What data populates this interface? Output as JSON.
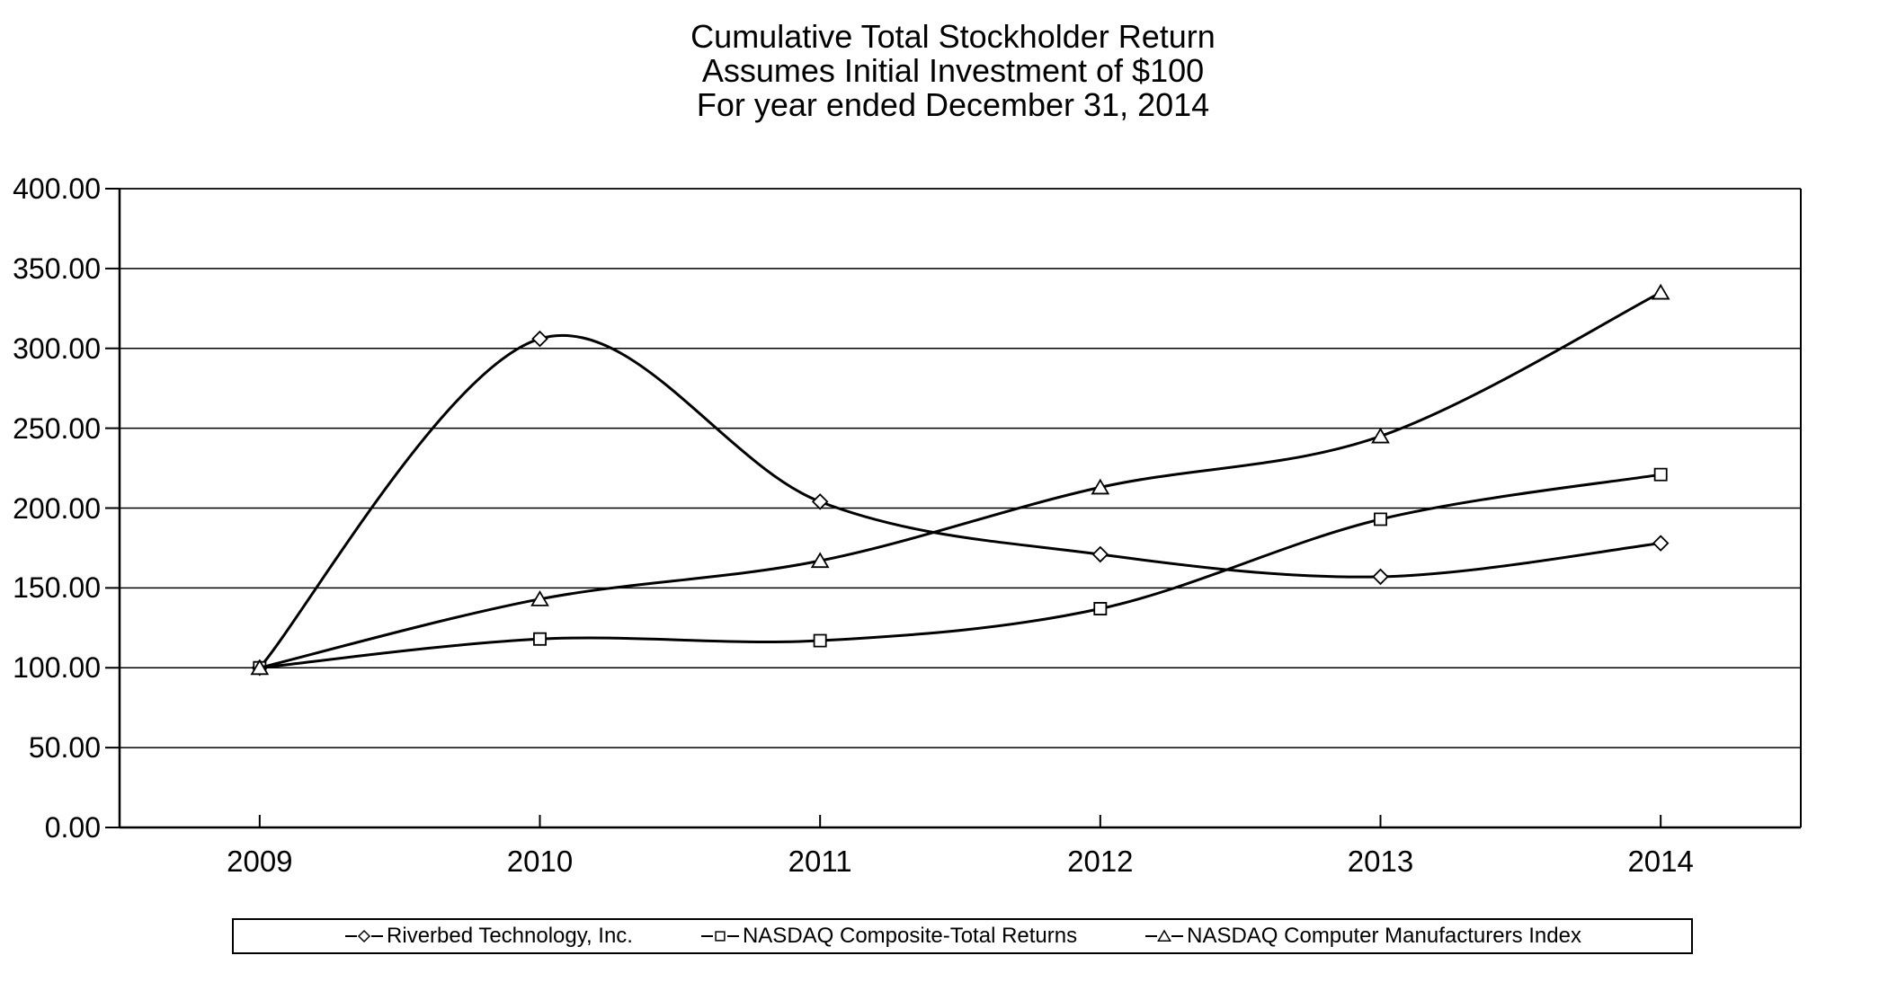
{
  "title": {
    "line1": "Cumulative Total Stockholder Return",
    "line2": "Assumes Initial Investment of $100",
    "line3": "For year ended December 31, 2014"
  },
  "chart_data": {
    "type": "line",
    "smoothed": true,
    "categories": [
      "2009",
      "2010",
      "2011",
      "2012",
      "2013",
      "2014"
    ],
    "series": [
      {
        "name": "Riverbed Technology, Inc.",
        "marker": "diamond",
        "values": [
          100,
          306,
          204,
          171,
          157,
          178
        ]
      },
      {
        "name": "NASDAQ Composite-Total Returns",
        "marker": "square",
        "values": [
          100,
          118,
          117,
          137,
          193,
          221
        ]
      },
      {
        "name": "NASDAQ Computer Manufacturers Index",
        "marker": "triangle",
        "values": [
          100,
          143,
          167,
          213,
          245,
          335
        ]
      }
    ],
    "ylim": [
      0,
      400
    ],
    "y_tick_step": 50,
    "y_tick_labels": [
      "0.00",
      "50.00",
      "100.00",
      "150.00",
      "200.00",
      "250.00",
      "300.00",
      "350.00",
      "400.00"
    ],
    "xlabel": "",
    "ylabel": "",
    "grid": true,
    "legend_position": "bottom",
    "line_color": "#000000",
    "marker_fill": "#ffffff",
    "background": "#ffffff"
  }
}
